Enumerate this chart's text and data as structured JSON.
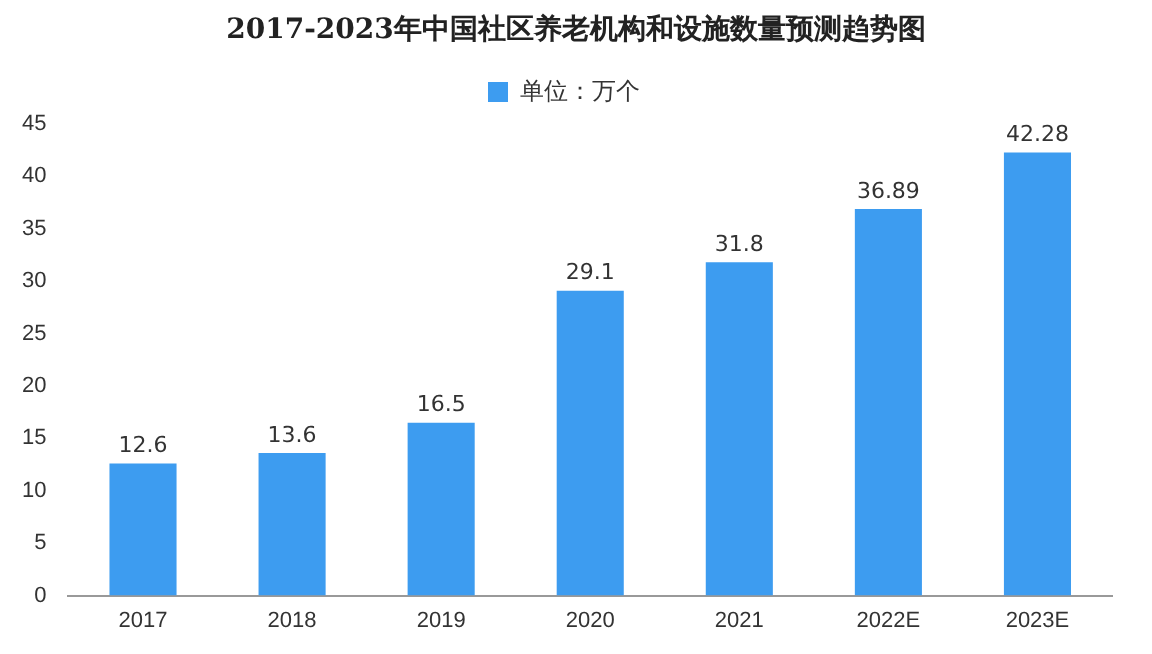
{
  "chart_data": {
    "type": "bar",
    "title": "2017-2023年中国社区养老机构和设施数量预测趋势图",
    "categories": [
      "2017",
      "2018",
      "2019",
      "2020",
      "2021",
      "2022E",
      "2023E"
    ],
    "series": [
      {
        "name": "单位：万个",
        "color": "#3d9cf0",
        "values": [
          12.6,
          13.6,
          16.5,
          29.1,
          31.8,
          36.89,
          42.28
        ]
      }
    ],
    "ylim": [
      0,
      45
    ],
    "yticks": [
      0,
      5,
      10,
      15,
      20,
      25,
      30,
      35,
      40,
      45
    ],
    "grid": false,
    "legend": "top",
    "data_labels": true
  }
}
